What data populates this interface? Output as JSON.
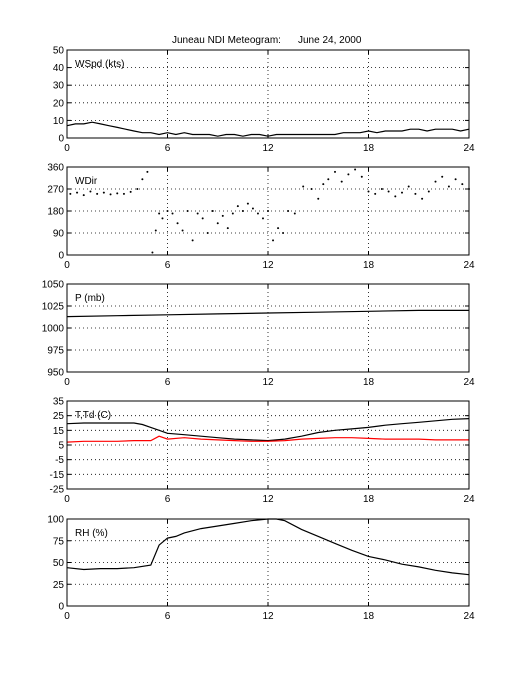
{
  "chart_data": {
    "type": "line",
    "title": "Juneau NDI Meteogram:",
    "date": "June 24, 2000",
    "x_ticks": [
      0,
      6,
      12,
      18,
      24
    ],
    "xlim": [
      0,
      24
    ],
    "grid": true,
    "panels": [
      {
        "label": "WSpd (kts)",
        "ylim": [
          0,
          50
        ],
        "y_ticks": [
          0,
          10,
          20,
          30,
          40,
          50
        ],
        "series": [
          {
            "style": "line",
            "color": "#000000",
            "x": [
              0,
              0.5,
              1,
              1.5,
              2,
              2.5,
              3,
              3.5,
              4,
              4.5,
              5,
              5.5,
              6,
              6.5,
              7,
              7.5,
              8,
              8.5,
              9,
              9.5,
              10,
              10.5,
              11,
              11.5,
              12,
              12.5,
              13,
              13.5,
              14.6,
              15,
              15.5,
              16,
              16.5,
              17,
              17.5,
              18,
              18.5,
              19,
              19.5,
              20,
              20.5,
              21,
              21.5,
              22,
              22.5,
              23,
              23.5,
              24
            ],
            "y": [
              7,
              8,
              8,
              9,
              8,
              7,
              6,
              5,
              4,
              3,
              3,
              2,
              3,
              2,
              3,
              2,
              2,
              2,
              1,
              2,
              2,
              1,
              2,
              2,
              1,
              2,
              2,
              2,
              2,
              2,
              2,
              2,
              3,
              3,
              3,
              4,
              3,
              4,
              4,
              4,
              5,
              5,
              4,
              5,
              5,
              5,
              4,
              5
            ]
          }
        ]
      },
      {
        "label": "WDir",
        "ylim": [
          0,
          360
        ],
        "y_ticks": [
          0,
          90,
          180,
          270,
          360
        ],
        "series": [
          {
            "style": "dots",
            "color": "#000000",
            "x": [
              0.2,
              0.6,
              1,
              1.4,
              1.8,
              2.2,
              2.6,
              3,
              3.4,
              3.8,
              4.2,
              4.5,
              4.8,
              5.1,
              5.3,
              5.5,
              5.7,
              6,
              6.3,
              6.6,
              6.9,
              7.2,
              7.5,
              7.8,
              8.1,
              8.4,
              8.7,
              9,
              9.3,
              9.6,
              9.9,
              10.2,
              10.5,
              10.8,
              11.1,
              11.4,
              11.7,
              12,
              12.3,
              12.6,
              12.9,
              13.2,
              13.6,
              14.1,
              14.6,
              15,
              15.3,
              15.6,
              16,
              16.4,
              16.8,
              17.2,
              17.6,
              18,
              18.4,
              18.8,
              19.2,
              19.6,
              20,
              20.4,
              20.8,
              21.2,
              21.6,
              22,
              22.4,
              22.8,
              23.2,
              23.6,
              24
            ],
            "y": [
              250,
              255,
              245,
              260,
              250,
              255,
              248,
              252,
              250,
              258,
              270,
              310,
              340,
              10,
              100,
              170,
              150,
              180,
              170,
              130,
              100,
              180,
              60,
              170,
              150,
              90,
              180,
              130,
              160,
              110,
              170,
              200,
              180,
              210,
              190,
              170,
              150,
              180,
              60,
              110,
              90,
              180,
              170,
              280,
              270,
              230,
              290,
              310,
              340,
              300,
              330,
              350,
              320,
              260,
              250,
              270,
              260,
              240,
              255,
              280,
              250,
              230,
              260,
              300,
              320,
              280,
              310,
              290,
              270
            ]
          }
        ]
      },
      {
        "label": "P (mb)",
        "ylim": [
          950,
          1050
        ],
        "y_ticks": [
          950,
          975,
          1000,
          1025,
          1050
        ],
        "series": [
          {
            "style": "line",
            "color": "#000000",
            "x": [
              0,
              3,
              6,
              9,
              12,
              15,
              18,
              21,
              24
            ],
            "y": [
              1013,
              1014,
              1015,
              1016,
              1017,
              1018,
              1019,
              1020,
              1020
            ]
          }
        ]
      },
      {
        "label": "T,Td (C)",
        "ylim": [
          -25,
          35
        ],
        "y_ticks": [
          -25,
          -15,
          -5,
          5,
          15,
          25,
          35
        ],
        "series": [
          {
            "style": "line",
            "color": "#000000",
            "x": [
              0,
              1,
              2,
              3,
              4,
              4.5,
              5,
              5.5,
              6,
              7,
              8,
              9,
              10,
              11,
              12,
              13,
              14,
              15,
              16,
              17,
              18,
              19,
              20,
              21,
              22,
              23,
              24
            ],
            "y": [
              19.5,
              20,
              20,
              20,
              20,
              19,
              17,
              15,
              13,
              12,
              11,
              10,
              9,
              8.5,
              8,
              9,
              11,
              13.5,
              15,
              16,
              17,
              18.5,
              19.5,
              20.5,
              21.5,
              22.5,
              23
            ]
          },
          {
            "style": "line",
            "color": "#ff0000",
            "x": [
              0,
              1,
              2,
              3,
              4,
              5,
              5.5,
              6,
              7,
              8,
              9,
              10,
              11,
              12,
              13,
              14,
              15,
              16,
              17,
              18,
              19,
              20,
              21,
              22,
              23,
              24
            ],
            "y": [
              7,
              7.5,
              7.5,
              7.5,
              8,
              8,
              11,
              9,
              10,
              9,
              8.5,
              8,
              7.5,
              7.5,
              8,
              9,
              9.5,
              10,
              10,
              9.5,
              9,
              9,
              9,
              8.5,
              8.5,
              8.5
            ]
          }
        ]
      },
      {
        "label": "RH (%)",
        "ylim": [
          0,
          100
        ],
        "y_ticks": [
          0,
          25,
          50,
          75,
          100
        ],
        "series": [
          {
            "style": "line",
            "color": "#000000",
            "x": [
              0,
              1,
              2,
              3,
              4,
              5,
              5.5,
              6,
              6.5,
              7,
              8,
              9,
              10,
              11,
              12,
              12.5,
              13,
              14,
              15,
              16,
              17,
              18,
              19,
              20,
              21,
              22,
              23,
              24
            ],
            "y": [
              44,
              42,
              43,
              43,
              44,
              47,
              70,
              78,
              80,
              84,
              89,
              92,
              95,
              98,
              100,
              100,
              98,
              88,
              80,
              72,
              64,
              57,
              53,
              48,
              45,
              41,
              38,
              36
            ]
          }
        ]
      }
    ]
  }
}
